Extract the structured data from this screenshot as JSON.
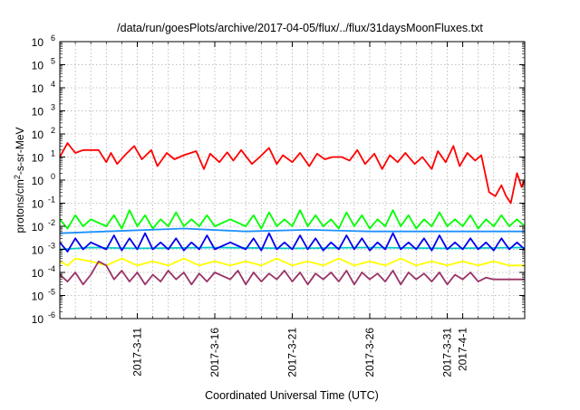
{
  "chart_data": {
    "type": "line",
    "title": "/data/run/goesPlots/archive/2017-04-05/flux/../flux/31daysMoonFluxes.txt",
    "xlabel": "Coordinated Universal Time (UTC)",
    "ylabel": {
      "prefix": "protons/cm",
      "sup": "2",
      "suffix": "-s-sr-MeV"
    },
    "y_scale": "log",
    "ylim": [
      1e-06,
      1000000.0
    ],
    "xlim": [
      "2017-03-06",
      "2017-04-05"
    ],
    "grid": true,
    "y_ticks": [
      {
        "base": "10",
        "exp": "-6"
      },
      {
        "base": "10",
        "exp": "-5"
      },
      {
        "base": "10",
        "exp": "-4"
      },
      {
        "base": "10",
        "exp": "-3"
      },
      {
        "base": "10",
        "exp": "-2"
      },
      {
        "base": "10",
        "exp": "-1"
      },
      {
        "base": "10",
        "exp": "0"
      },
      {
        "base": "10",
        "exp": "1"
      },
      {
        "base": "10",
        "exp": "2"
      },
      {
        "base": "10",
        "exp": "3"
      },
      {
        "base": "10",
        "exp": "4"
      },
      {
        "base": "10",
        "exp": "5"
      },
      {
        "base": "10",
        "exp": "6"
      }
    ],
    "x_ticks": [
      {
        "date": "2017-03-11",
        "label": "2017-3-11"
      },
      {
        "date": "2017-03-16",
        "label": "2017-3-16"
      },
      {
        "date": "2017-03-21",
        "label": "2017-3-21"
      },
      {
        "date": "2017-03-26",
        "label": "2017-3-26"
      },
      {
        "date": "2017-03-31",
        "label": "2017-3-31"
      },
      {
        "date": "2017-04-01",
        "label": "2017-4-1"
      }
    ],
    "series": [
      {
        "color": "#ff0000",
        "values": [
          [
            0.0,
            10
          ],
          [
            0.5,
            40
          ],
          [
            1.0,
            15
          ],
          [
            1.5,
            20
          ],
          [
            2.5,
            20
          ],
          [
            3.0,
            6
          ],
          [
            3.3,
            15
          ],
          [
            3.7,
            5
          ],
          [
            4.2,
            12
          ],
          [
            4.8,
            30
          ],
          [
            5.3,
            8
          ],
          [
            5.9,
            20
          ],
          [
            6.3,
            4
          ],
          [
            6.9,
            15
          ],
          [
            7.4,
            8
          ],
          [
            8.0,
            12
          ],
          [
            8.8,
            18
          ],
          [
            9.3,
            3
          ],
          [
            9.7,
            14
          ],
          [
            10.3,
            6
          ],
          [
            10.8,
            16
          ],
          [
            11.2,
            7
          ],
          [
            11.7,
            20
          ],
          [
            12.4,
            5
          ],
          [
            12.9,
            10
          ],
          [
            13.5,
            25
          ],
          [
            14.0,
            5
          ],
          [
            14.4,
            12
          ],
          [
            15.0,
            6
          ],
          [
            15.5,
            15
          ],
          [
            16.1,
            4
          ],
          [
            16.6,
            14
          ],
          [
            17.1,
            8
          ],
          [
            17.6,
            10
          ],
          [
            18.2,
            10
          ],
          [
            18.7,
            7
          ],
          [
            19.2,
            20
          ],
          [
            19.7,
            5
          ],
          [
            20.3,
            14
          ],
          [
            20.8,
            3
          ],
          [
            21.3,
            12
          ],
          [
            21.8,
            6
          ],
          [
            22.3,
            15
          ],
          [
            22.9,
            5
          ],
          [
            23.4,
            10
          ],
          [
            24.0,
            3
          ],
          [
            24.4,
            18
          ],
          [
            24.9,
            6
          ],
          [
            25.4,
            30
          ],
          [
            25.8,
            4
          ],
          [
            26.3,
            15
          ],
          [
            26.8,
            7
          ],
          [
            27.2,
            12
          ],
          [
            27.7,
            0.3
          ],
          [
            28.1,
            0.2
          ],
          [
            28.5,
            0.6
          ],
          [
            28.8,
            0.2
          ],
          [
            29.1,
            0.1
          ],
          [
            29.5,
            2
          ],
          [
            29.8,
            0.5
          ],
          [
            30.0,
            1
          ]
        ]
      },
      {
        "color": "#00ff00",
        "values": [
          [
            0,
            0.02
          ],
          [
            0.5,
            0.008
          ],
          [
            1,
            0.03
          ],
          [
            1.5,
            0.01
          ],
          [
            2,
            0.02
          ],
          [
            3,
            0.01
          ],
          [
            3.5,
            0.03
          ],
          [
            4,
            0.008
          ],
          [
            4.5,
            0.05
          ],
          [
            5,
            0.01
          ],
          [
            5.5,
            0.03
          ],
          [
            6,
            0.008
          ],
          [
            6.5,
            0.02
          ],
          [
            7,
            0.01
          ],
          [
            7.5,
            0.04
          ],
          [
            8,
            0.01
          ],
          [
            8.5,
            0.02
          ],
          [
            9,
            0.01
          ],
          [
            9.5,
            0.03
          ],
          [
            10,
            0.01
          ],
          [
            11,
            0.02
          ],
          [
            12,
            0.01
          ],
          [
            12.5,
            0.03
          ],
          [
            13,
            0.008
          ],
          [
            13.5,
            0.04
          ],
          [
            14,
            0.01
          ],
          [
            14.5,
            0.02
          ],
          [
            15,
            0.01
          ],
          [
            15.5,
            0.05
          ],
          [
            16,
            0.01
          ],
          [
            16.5,
            0.03
          ],
          [
            17,
            0.01
          ],
          [
            17.5,
            0.02
          ],
          [
            18,
            0.008
          ],
          [
            18.5,
            0.04
          ],
          [
            19,
            0.01
          ],
          [
            19.5,
            0.03
          ],
          [
            20,
            0.008
          ],
          [
            20.5,
            0.02
          ],
          [
            21,
            0.01
          ],
          [
            21.5,
            0.05
          ],
          [
            22,
            0.01
          ],
          [
            22.5,
            0.03
          ],
          [
            23,
            0.008
          ],
          [
            23.5,
            0.02
          ],
          [
            24,
            0.01
          ],
          [
            24.5,
            0.04
          ],
          [
            25,
            0.01
          ],
          [
            25.5,
            0.02
          ],
          [
            26,
            0.01
          ],
          [
            26.5,
            0.03
          ],
          [
            27,
            0.008
          ],
          [
            27.5,
            0.02
          ],
          [
            28,
            0.01
          ],
          [
            28.5,
            0.03
          ],
          [
            29,
            0.01
          ],
          [
            29.5,
            0.02
          ],
          [
            30,
            0.01
          ]
        ]
      },
      {
        "color": "#1e90ff",
        "values": [
          [
            0,
            0.005
          ],
          [
            3,
            0.006
          ],
          [
            8,
            0.008
          ],
          [
            12,
            0.006
          ],
          [
            16,
            0.007
          ],
          [
            20,
            0.006
          ],
          [
            25,
            0.006
          ],
          [
            30,
            0.006
          ]
        ]
      },
      {
        "color": "#00cccc",
        "values": [
          [
            0,
            0.001
          ],
          [
            2,
            0.0012
          ],
          [
            5,
            0.0011
          ],
          [
            10,
            0.0012
          ],
          [
            15,
            0.0011
          ],
          [
            20,
            0.0012
          ],
          [
            25,
            0.0011
          ],
          [
            30,
            0.0012
          ]
        ]
      },
      {
        "color": "#0000ee",
        "values": [
          [
            0,
            0.002
          ],
          [
            0.5,
            0.0008
          ],
          [
            1,
            0.003
          ],
          [
            1.5,
            0.001
          ],
          [
            2,
            0.002
          ],
          [
            3,
            0.001
          ],
          [
            3.5,
            0.004
          ],
          [
            4,
            0.0009
          ],
          [
            4.5,
            0.003
          ],
          [
            5,
            0.001
          ],
          [
            5.5,
            0.005
          ],
          [
            6,
            0.001
          ],
          [
            6.5,
            0.002
          ],
          [
            7,
            0.001
          ],
          [
            7.5,
            0.003
          ],
          [
            8,
            0.0009
          ],
          [
            8.5,
            0.002
          ],
          [
            9,
            0.001
          ],
          [
            9.5,
            0.004
          ],
          [
            10,
            0.001
          ],
          [
            11,
            0.002
          ],
          [
            12,
            0.001
          ],
          [
            12.5,
            0.003
          ],
          [
            13,
            0.0009
          ],
          [
            13.5,
            0.005
          ],
          [
            14,
            0.001
          ],
          [
            14.5,
            0.002
          ],
          [
            15,
            0.001
          ],
          [
            15.5,
            0.004
          ],
          [
            16,
            0.001
          ],
          [
            16.5,
            0.003
          ],
          [
            17,
            0.0009
          ],
          [
            17.5,
            0.002
          ],
          [
            18,
            0.001
          ],
          [
            18.5,
            0.004
          ],
          [
            19,
            0.001
          ],
          [
            19.5,
            0.003
          ],
          [
            20,
            0.0009
          ],
          [
            20.5,
            0.002
          ],
          [
            21,
            0.001
          ],
          [
            21.5,
            0.005
          ],
          [
            22,
            0.001
          ],
          [
            22.5,
            0.002
          ],
          [
            23,
            0.001
          ],
          [
            23.5,
            0.003
          ],
          [
            24,
            0.0009
          ],
          [
            24.5,
            0.004
          ],
          [
            25,
            0.001
          ],
          [
            25.5,
            0.002
          ],
          [
            26,
            0.001
          ],
          [
            26.5,
            0.003
          ],
          [
            27,
            0.001
          ],
          [
            27.5,
            0.002
          ],
          [
            28,
            0.0009
          ],
          [
            28.5,
            0.003
          ],
          [
            29,
            0.001
          ],
          [
            29.5,
            0.002
          ],
          [
            30,
            0.001
          ]
        ]
      },
      {
        "color": "#ffff00",
        "values": [
          [
            0,
            0.0003
          ],
          [
            0.5,
            0.0002
          ],
          [
            1,
            0.0004
          ],
          [
            2,
            0.0003
          ],
          [
            3,
            0.0002
          ],
          [
            4,
            0.0004
          ],
          [
            5,
            0.0002
          ],
          [
            6,
            0.0003
          ],
          [
            7,
            0.0002
          ],
          [
            8,
            0.0004
          ],
          [
            9,
            0.0002
          ],
          [
            10,
            0.0003
          ],
          [
            11,
            0.0002
          ],
          [
            12,
            0.0003
          ],
          [
            13,
            0.0002
          ],
          [
            14,
            0.0004
          ],
          [
            15,
            0.0002
          ],
          [
            16,
            0.0003
          ],
          [
            17,
            0.0002
          ],
          [
            18,
            0.0004
          ],
          [
            19,
            0.0002
          ],
          [
            20,
            0.0003
          ],
          [
            21,
            0.0002
          ],
          [
            22,
            0.0004
          ],
          [
            23,
            0.0002
          ],
          [
            24,
            0.0003
          ],
          [
            25,
            0.0002
          ],
          [
            26,
            0.0003
          ],
          [
            27,
            0.0002
          ],
          [
            28,
            0.0003
          ],
          [
            29,
            0.0002
          ],
          [
            30,
            0.0002
          ]
        ]
      },
      {
        "color": "#993366",
        "values": [
          [
            0,
            8e-05
          ],
          [
            0.5,
            4e-05
          ],
          [
            1,
            0.0001
          ],
          [
            1.5,
            3e-05
          ],
          [
            2,
            8e-05
          ],
          [
            2.5,
            0.0003
          ],
          [
            3,
            0.0002
          ],
          [
            3.5,
            5e-05
          ],
          [
            4,
            0.00012
          ],
          [
            4.5,
            4e-05
          ],
          [
            5,
            0.0001
          ],
          [
            5.5,
            3e-05
          ],
          [
            6,
            8e-05
          ],
          [
            6.5,
            4e-05
          ],
          [
            7,
            0.00012
          ],
          [
            7.5,
            5e-05
          ],
          [
            8,
            0.0001
          ],
          [
            8.5,
            3e-05
          ],
          [
            9,
            9e-05
          ],
          [
            9.5,
            4e-05
          ],
          [
            10,
            0.0001
          ],
          [
            11,
            5e-05
          ],
          [
            11.5,
            0.00012
          ],
          [
            12,
            3e-05
          ],
          [
            12.5,
            0.0001
          ],
          [
            13,
            4e-05
          ],
          [
            13.5,
            9e-05
          ],
          [
            14,
            5e-05
          ],
          [
            14.5,
            0.00012
          ],
          [
            15,
            4e-05
          ],
          [
            15.5,
            0.0001
          ],
          [
            16,
            3e-05
          ],
          [
            16.5,
            9e-05
          ],
          [
            17,
            5e-05
          ],
          [
            17.5,
            0.0001
          ],
          [
            18,
            4e-05
          ],
          [
            18.5,
            0.00012
          ],
          [
            19,
            3e-05
          ],
          [
            19.5,
            0.0001
          ],
          [
            20,
            5e-05
          ],
          [
            20.5,
            9e-05
          ],
          [
            21,
            4e-05
          ],
          [
            21.5,
            0.00012
          ],
          [
            22,
            3e-05
          ],
          [
            22.5,
            0.0001
          ],
          [
            23,
            5e-05
          ],
          [
            23.5,
            9e-05
          ],
          [
            24,
            4e-05
          ],
          [
            24.5,
            0.0001
          ],
          [
            25,
            3e-05
          ],
          [
            25.5,
            8e-05
          ],
          [
            26,
            5e-05
          ],
          [
            26.5,
            0.0001
          ],
          [
            27,
            4e-05
          ],
          [
            27.5,
            6e-05
          ],
          [
            28,
            5e-05
          ],
          [
            29,
            5e-05
          ],
          [
            30,
            5e-05
          ]
        ]
      }
    ]
  }
}
